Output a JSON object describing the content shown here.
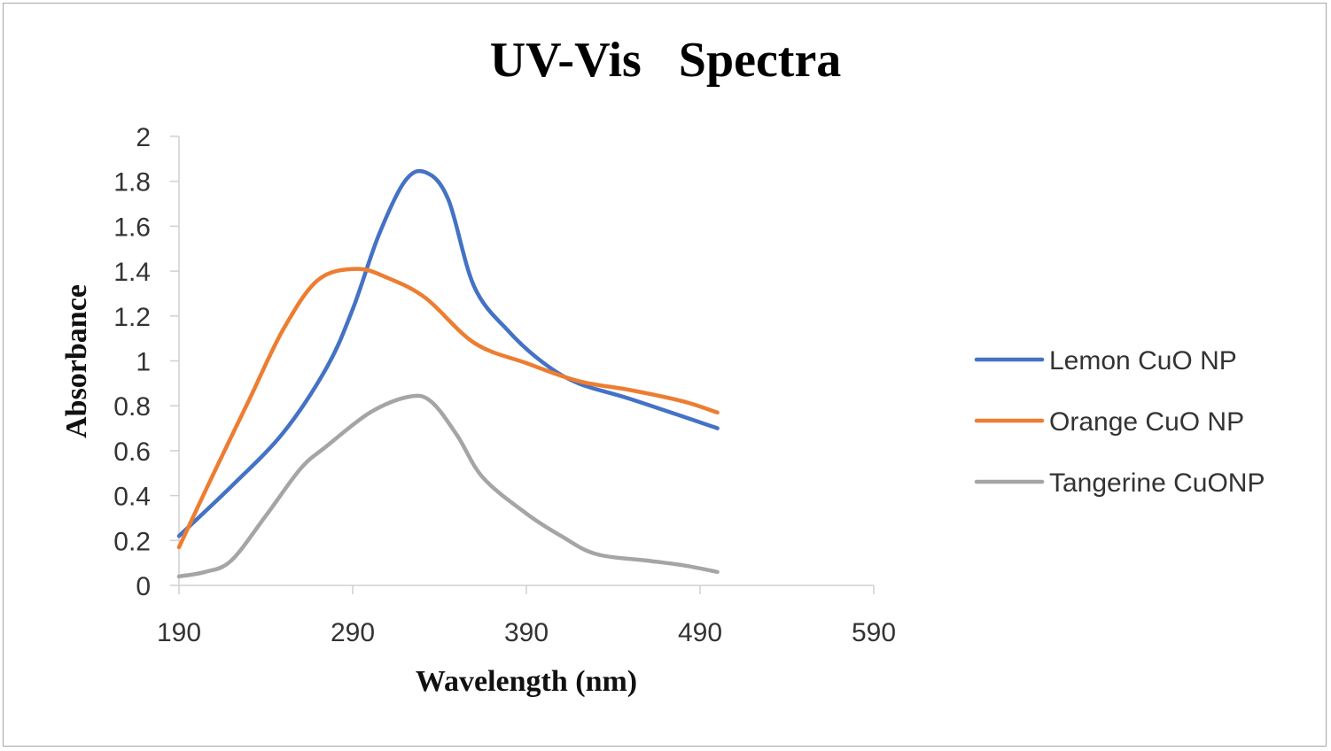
{
  "chart_data": {
    "type": "line",
    "title": "UV-Vis   Spectra",
    "xlabel": "Wavelength (nm)",
    "ylabel": "Absorbance",
    "xlim": [
      190,
      590
    ],
    "ylim": [
      0,
      2
    ],
    "x_ticks": [
      "190",
      "290",
      "390",
      "490",
      "590"
    ],
    "y_ticks": [
      "0",
      "0.2",
      "0.4",
      "0.6",
      "0.8",
      "1",
      "1.2",
      "1.4",
      "1.6",
      "1.8",
      "2"
    ],
    "grid": false,
    "legend_position": "right",
    "series": [
      {
        "name": "Lemon CuO NP",
        "color": "#4472C4",
        "points": [
          [
            190,
            0.22
          ],
          [
            220,
            0.44
          ],
          [
            250,
            0.68
          ],
          [
            275,
            0.97
          ],
          [
            290,
            1.23
          ],
          [
            305,
            1.56
          ],
          [
            320,
            1.8
          ],
          [
            332,
            1.84
          ],
          [
            345,
            1.72
          ],
          [
            360,
            1.33
          ],
          [
            380,
            1.13
          ],
          [
            400,
            0.99
          ],
          [
            420,
            0.9
          ],
          [
            450,
            0.83
          ],
          [
            500,
            0.7
          ]
        ]
      },
      {
        "name": "Orange CuO NP",
        "color": "#ED7D31",
        "points": [
          [
            190,
            0.17
          ],
          [
            210,
            0.5
          ],
          [
            230,
            0.82
          ],
          [
            250,
            1.14
          ],
          [
            270,
            1.36
          ],
          [
            292,
            1.41
          ],
          [
            310,
            1.37
          ],
          [
            332,
            1.28
          ],
          [
            360,
            1.08
          ],
          [
            390,
            0.99
          ],
          [
            420,
            0.91
          ],
          [
            450,
            0.87
          ],
          [
            480,
            0.82
          ],
          [
            500,
            0.77
          ]
        ]
      },
      {
        "name": "Tangerine CuONP",
        "color": "#A5A5A5",
        "points": [
          [
            190,
            0.04
          ],
          [
            205,
            0.06
          ],
          [
            220,
            0.11
          ],
          [
            240,
            0.31
          ],
          [
            260,
            0.52
          ],
          [
            275,
            0.62
          ],
          [
            300,
            0.77
          ],
          [
            322,
            0.84
          ],
          [
            335,
            0.82
          ],
          [
            350,
            0.67
          ],
          [
            365,
            0.48
          ],
          [
            390,
            0.32
          ],
          [
            410,
            0.22
          ],
          [
            430,
            0.14
          ],
          [
            460,
            0.11
          ],
          [
            480,
            0.09
          ],
          [
            500,
            0.06
          ]
        ]
      }
    ]
  }
}
